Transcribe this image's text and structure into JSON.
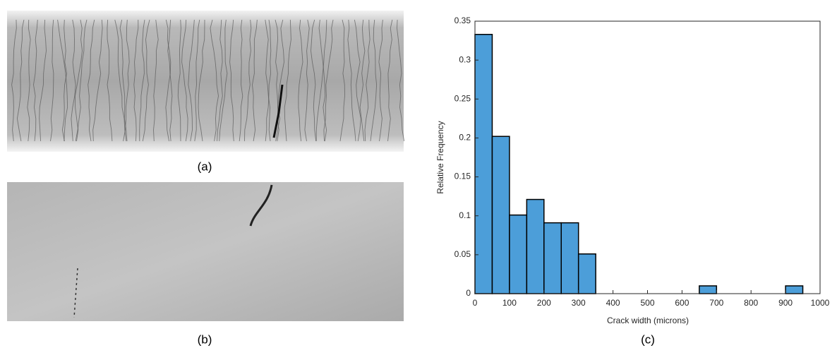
{
  "image_captions": [
    "(a)",
    "(b)"
  ],
  "chart_data": {
    "type": "histogram",
    "caption": "(c)",
    "xlabel": "Crack width (microns)",
    "ylabel": "Relative Frequency",
    "bins": [
      0,
      50,
      100,
      150,
      200,
      250,
      300,
      350,
      400,
      450,
      500,
      550,
      600,
      650,
      700,
      750,
      800,
      850,
      900,
      950,
      1000
    ],
    "values": [
      0.333,
      0.202,
      0.101,
      0.121,
      0.091,
      0.091,
      0.051,
      0,
      0,
      0,
      0,
      0,
      0,
      0.01,
      0,
      0,
      0,
      0,
      0.01,
      0
    ],
    "color": "#4c9ed9",
    "xlim": [
      0,
      1000
    ],
    "xticks": [
      0,
      100,
      200,
      300,
      400,
      500,
      600,
      700,
      800,
      900,
      1000
    ],
    "ylim": [
      0,
      0.35
    ],
    "yticks": [
      0,
      0.05,
      0.1,
      0.15,
      0.2,
      0.25,
      0.3,
      0.35
    ]
  }
}
